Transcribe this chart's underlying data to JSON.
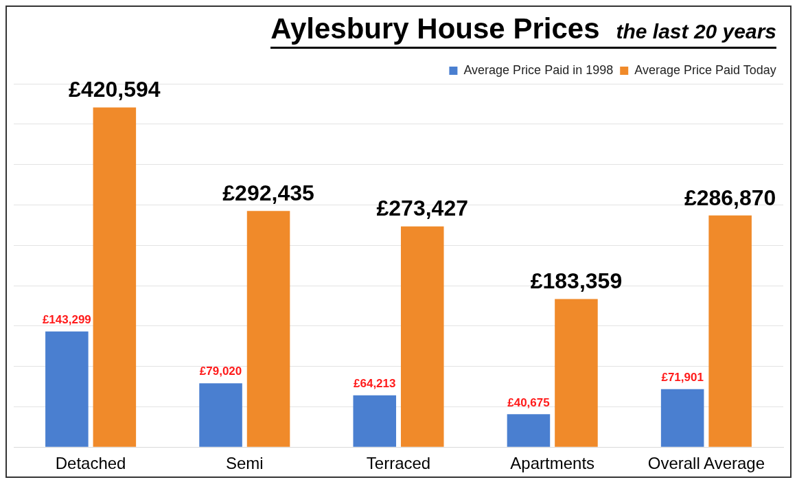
{
  "chart_data": {
    "type": "bar",
    "title": "Aylesbury House Prices",
    "subtitle": "the last 20 years",
    "categories": [
      "Detached",
      "Semi",
      "Terraced",
      "Apartments",
      "Overall Average"
    ],
    "series": [
      {
        "name": "Average Price Paid in 1998",
        "color": "#4a7fd0",
        "values": [
          143299,
          79020,
          64213,
          40675,
          71901
        ],
        "value_labels": [
          "£143,299",
          "£79,020",
          "£64,213",
          "£40,675",
          "£71,901"
        ]
      },
      {
        "name": "Average Price Paid Today",
        "color": "#f08a2a",
        "values": [
          420594,
          292435,
          273427,
          183359,
          286870
        ],
        "value_labels": [
          "£420,594",
          "£292,435",
          "£273,427",
          "£183,359",
          "£286,870"
        ]
      }
    ],
    "grid": "y",
    "legend": "top right",
    "tick_labels": "x"
  }
}
